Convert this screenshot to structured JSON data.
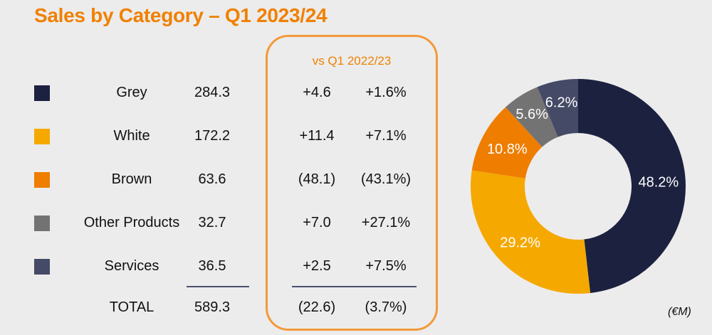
{
  "title": "Sales by Category – Q1 2023/24",
  "comparison_header": "vs Q1 2022/23",
  "unit": "(€M)",
  "rows": [
    {
      "label": "Grey",
      "value": "284.3",
      "change": "+4.6",
      "pct": "+1.6%",
      "color": "#1c2140"
    },
    {
      "label": "White",
      "value": "172.2",
      "change": "+11.4",
      "pct": "+7.1%",
      "color": "#f5a800"
    },
    {
      "label": "Brown",
      "value": "63.6",
      "change": "(48.1)",
      "pct": "(43.1%)",
      "color": "#ee7d00"
    },
    {
      "label": "Other Products",
      "value": "32.7",
      "change": "+7.0",
      "pct": "+27.1%",
      "color": "#737373"
    },
    {
      "label": "Services",
      "value": "36.5",
      "change": "+2.5",
      "pct": "+7.5%",
      "color": "#454a66"
    },
    {
      "label": "TOTAL",
      "value": "589.3",
      "change": "(22.6)",
      "pct": "(3.7%)"
    }
  ],
  "chart_data": {
    "type": "pie",
    "style": "donut",
    "categories": [
      "Grey",
      "White",
      "Brown",
      "Other Products",
      "Services"
    ],
    "values": [
      48.2,
      29.2,
      10.8,
      5.6,
      6.2
    ],
    "labels": [
      "48.2%",
      "29.2%",
      "10.8%",
      "5.6%",
      "6.2%"
    ],
    "colors": [
      "#1c2140",
      "#f5a800",
      "#ee7d00",
      "#737373",
      "#454a66"
    ]
  }
}
